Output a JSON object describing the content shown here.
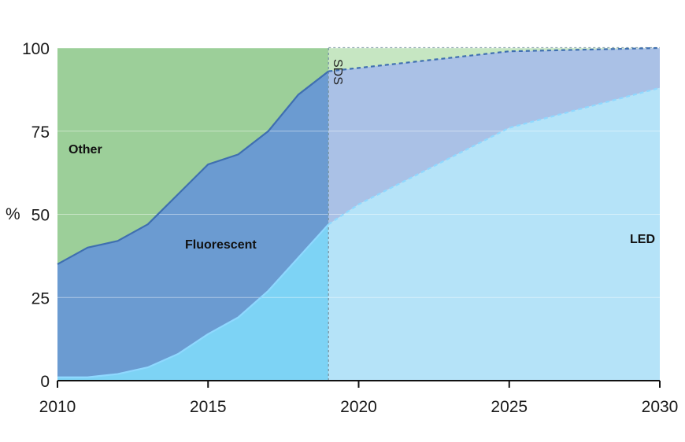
{
  "chart_data": {
    "type": "area",
    "title": "",
    "xlabel": "",
    "ylabel": "%",
    "xlim": [
      2010,
      2030
    ],
    "ylim": [
      0,
      100
    ],
    "x_ticks": [
      2010,
      2015,
      2020,
      2025,
      2030
    ],
    "y_ticks": [
      0,
      25,
      50,
      75,
      100
    ],
    "stacked": true,
    "grid": "horizontal",
    "projection_start": 2019,
    "projection_label": "SDS",
    "series": [
      {
        "name": "LED",
        "historical": {
          "x": [
            2010,
            2011,
            2012,
            2013,
            2014,
            2015,
            2016,
            2017,
            2018,
            2019
          ],
          "top": [
            1,
            1,
            2,
            4,
            8,
            14,
            19,
            27,
            37,
            47
          ]
        },
        "projection": {
          "x": [
            2019,
            2020,
            2025,
            2030
          ],
          "top": [
            47,
            53,
            76,
            88
          ]
        },
        "color": "#7dd3f5",
        "projection_color": "#b5e3f8",
        "line_color": "#8fd8ff"
      },
      {
        "name": "Fluorescent",
        "historical": {
          "x": [
            2010,
            2011,
            2012,
            2013,
            2014,
            2015,
            2016,
            2017,
            2018,
            2019
          ],
          "top": [
            35,
            40,
            42,
            47,
            56,
            65,
            68,
            75,
            86,
            93
          ]
        },
        "projection": {
          "x": [
            2019,
            2025,
            2030
          ],
          "top": [
            93,
            99,
            100
          ]
        },
        "color": "#6b9bd1",
        "projection_color": "#aac1e6",
        "line_color": "#3f6fb0"
      },
      {
        "name": "Other",
        "historical": {
          "x": [
            2010,
            2019
          ],
          "top": [
            100,
            100
          ]
        },
        "projection": {
          "x": [
            2019,
            2030
          ],
          "top": [
            100,
            100
          ]
        },
        "color": "#9ccf99",
        "projection_color": "#c6e6c2"
      }
    ],
    "labels": {
      "led": "LED",
      "fluorescent": "Fluorescent",
      "other": "Other"
    }
  }
}
